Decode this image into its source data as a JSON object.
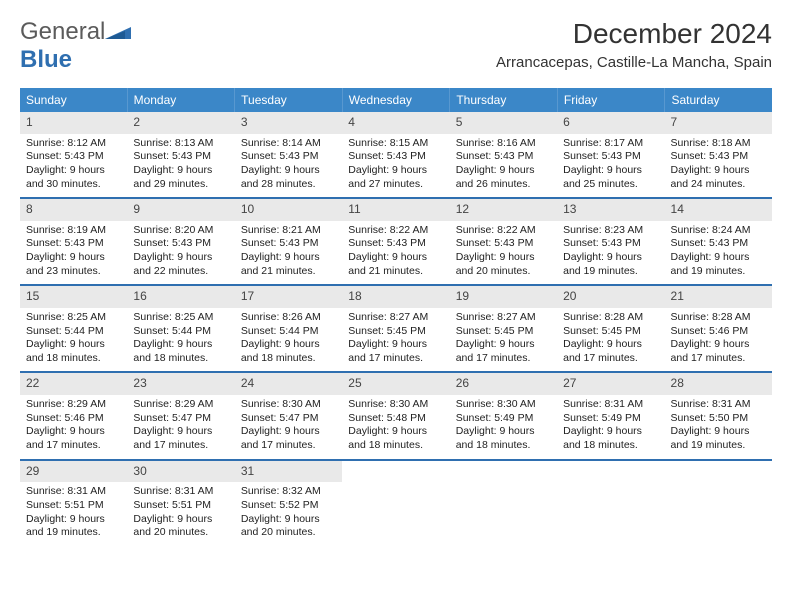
{
  "logo": {
    "general": "General",
    "blue": "Blue"
  },
  "title": "December 2024",
  "location": "Arrancacepas, Castille-La Mancha, Spain",
  "day_headers": [
    "Sunday",
    "Monday",
    "Tuesday",
    "Wednesday",
    "Thursday",
    "Friday",
    "Saturday"
  ],
  "colors": {
    "header_bg": "#3b87c8",
    "header_text": "#ffffff",
    "daynum_bg": "#e9e9e9",
    "week_border": "#2f6fb0",
    "logo_blue": "#2f6fb0",
    "logo_gray": "#5b5b5b"
  },
  "weeks": [
    [
      {
        "num": "1",
        "sunrise": "Sunrise: 8:12 AM",
        "sunset": "Sunset: 5:43 PM",
        "daylight1": "Daylight: 9 hours",
        "daylight2": "and 30 minutes."
      },
      {
        "num": "2",
        "sunrise": "Sunrise: 8:13 AM",
        "sunset": "Sunset: 5:43 PM",
        "daylight1": "Daylight: 9 hours",
        "daylight2": "and 29 minutes."
      },
      {
        "num": "3",
        "sunrise": "Sunrise: 8:14 AM",
        "sunset": "Sunset: 5:43 PM",
        "daylight1": "Daylight: 9 hours",
        "daylight2": "and 28 minutes."
      },
      {
        "num": "4",
        "sunrise": "Sunrise: 8:15 AM",
        "sunset": "Sunset: 5:43 PM",
        "daylight1": "Daylight: 9 hours",
        "daylight2": "and 27 minutes."
      },
      {
        "num": "5",
        "sunrise": "Sunrise: 8:16 AM",
        "sunset": "Sunset: 5:43 PM",
        "daylight1": "Daylight: 9 hours",
        "daylight2": "and 26 minutes."
      },
      {
        "num": "6",
        "sunrise": "Sunrise: 8:17 AM",
        "sunset": "Sunset: 5:43 PM",
        "daylight1": "Daylight: 9 hours",
        "daylight2": "and 25 minutes."
      },
      {
        "num": "7",
        "sunrise": "Sunrise: 8:18 AM",
        "sunset": "Sunset: 5:43 PM",
        "daylight1": "Daylight: 9 hours",
        "daylight2": "and 24 minutes."
      }
    ],
    [
      {
        "num": "8",
        "sunrise": "Sunrise: 8:19 AM",
        "sunset": "Sunset: 5:43 PM",
        "daylight1": "Daylight: 9 hours",
        "daylight2": "and 23 minutes."
      },
      {
        "num": "9",
        "sunrise": "Sunrise: 8:20 AM",
        "sunset": "Sunset: 5:43 PM",
        "daylight1": "Daylight: 9 hours",
        "daylight2": "and 22 minutes."
      },
      {
        "num": "10",
        "sunrise": "Sunrise: 8:21 AM",
        "sunset": "Sunset: 5:43 PM",
        "daylight1": "Daylight: 9 hours",
        "daylight2": "and 21 minutes."
      },
      {
        "num": "11",
        "sunrise": "Sunrise: 8:22 AM",
        "sunset": "Sunset: 5:43 PM",
        "daylight1": "Daylight: 9 hours",
        "daylight2": "and 21 minutes."
      },
      {
        "num": "12",
        "sunrise": "Sunrise: 8:22 AM",
        "sunset": "Sunset: 5:43 PM",
        "daylight1": "Daylight: 9 hours",
        "daylight2": "and 20 minutes."
      },
      {
        "num": "13",
        "sunrise": "Sunrise: 8:23 AM",
        "sunset": "Sunset: 5:43 PM",
        "daylight1": "Daylight: 9 hours",
        "daylight2": "and 19 minutes."
      },
      {
        "num": "14",
        "sunrise": "Sunrise: 8:24 AM",
        "sunset": "Sunset: 5:43 PM",
        "daylight1": "Daylight: 9 hours",
        "daylight2": "and 19 minutes."
      }
    ],
    [
      {
        "num": "15",
        "sunrise": "Sunrise: 8:25 AM",
        "sunset": "Sunset: 5:44 PM",
        "daylight1": "Daylight: 9 hours",
        "daylight2": "and 18 minutes."
      },
      {
        "num": "16",
        "sunrise": "Sunrise: 8:25 AM",
        "sunset": "Sunset: 5:44 PM",
        "daylight1": "Daylight: 9 hours",
        "daylight2": "and 18 minutes."
      },
      {
        "num": "17",
        "sunrise": "Sunrise: 8:26 AM",
        "sunset": "Sunset: 5:44 PM",
        "daylight1": "Daylight: 9 hours",
        "daylight2": "and 18 minutes."
      },
      {
        "num": "18",
        "sunrise": "Sunrise: 8:27 AM",
        "sunset": "Sunset: 5:45 PM",
        "daylight1": "Daylight: 9 hours",
        "daylight2": "and 17 minutes."
      },
      {
        "num": "19",
        "sunrise": "Sunrise: 8:27 AM",
        "sunset": "Sunset: 5:45 PM",
        "daylight1": "Daylight: 9 hours",
        "daylight2": "and 17 minutes."
      },
      {
        "num": "20",
        "sunrise": "Sunrise: 8:28 AM",
        "sunset": "Sunset: 5:45 PM",
        "daylight1": "Daylight: 9 hours",
        "daylight2": "and 17 minutes."
      },
      {
        "num": "21",
        "sunrise": "Sunrise: 8:28 AM",
        "sunset": "Sunset: 5:46 PM",
        "daylight1": "Daylight: 9 hours",
        "daylight2": "and 17 minutes."
      }
    ],
    [
      {
        "num": "22",
        "sunrise": "Sunrise: 8:29 AM",
        "sunset": "Sunset: 5:46 PM",
        "daylight1": "Daylight: 9 hours",
        "daylight2": "and 17 minutes."
      },
      {
        "num": "23",
        "sunrise": "Sunrise: 8:29 AM",
        "sunset": "Sunset: 5:47 PM",
        "daylight1": "Daylight: 9 hours",
        "daylight2": "and 17 minutes."
      },
      {
        "num": "24",
        "sunrise": "Sunrise: 8:30 AM",
        "sunset": "Sunset: 5:47 PM",
        "daylight1": "Daylight: 9 hours",
        "daylight2": "and 17 minutes."
      },
      {
        "num": "25",
        "sunrise": "Sunrise: 8:30 AM",
        "sunset": "Sunset: 5:48 PM",
        "daylight1": "Daylight: 9 hours",
        "daylight2": "and 18 minutes."
      },
      {
        "num": "26",
        "sunrise": "Sunrise: 8:30 AM",
        "sunset": "Sunset: 5:49 PM",
        "daylight1": "Daylight: 9 hours",
        "daylight2": "and 18 minutes."
      },
      {
        "num": "27",
        "sunrise": "Sunrise: 8:31 AM",
        "sunset": "Sunset: 5:49 PM",
        "daylight1": "Daylight: 9 hours",
        "daylight2": "and 18 minutes."
      },
      {
        "num": "28",
        "sunrise": "Sunrise: 8:31 AM",
        "sunset": "Sunset: 5:50 PM",
        "daylight1": "Daylight: 9 hours",
        "daylight2": "and 19 minutes."
      }
    ],
    [
      {
        "num": "29",
        "sunrise": "Sunrise: 8:31 AM",
        "sunset": "Sunset: 5:51 PM",
        "daylight1": "Daylight: 9 hours",
        "daylight2": "and 19 minutes."
      },
      {
        "num": "30",
        "sunrise": "Sunrise: 8:31 AM",
        "sunset": "Sunset: 5:51 PM",
        "daylight1": "Daylight: 9 hours",
        "daylight2": "and 20 minutes."
      },
      {
        "num": "31",
        "sunrise": "Sunrise: 8:32 AM",
        "sunset": "Sunset: 5:52 PM",
        "daylight1": "Daylight: 9 hours",
        "daylight2": "and 20 minutes."
      },
      null,
      null,
      null,
      null
    ]
  ]
}
